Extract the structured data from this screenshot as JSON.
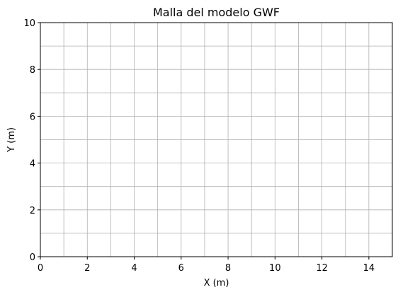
{
  "chart_data": {
    "type": "scatter",
    "title": "Malla del modelo GWF",
    "xlabel": "X (m)",
    "ylabel": "Y (m)",
    "xlim": [
      0,
      15
    ],
    "ylim": [
      0,
      10
    ],
    "xticks": [
      0,
      2,
      4,
      6,
      8,
      10,
      12,
      14
    ],
    "yticks": [
      0,
      2,
      4,
      6,
      8,
      10
    ],
    "grid": true,
    "grid_x": [
      0,
      1,
      2,
      3,
      4,
      5,
      6,
      7,
      8,
      9,
      10,
      11,
      12,
      13,
      14,
      15
    ],
    "grid_y": [
      0,
      1,
      2,
      3,
      4,
      5,
      6,
      7,
      8,
      9,
      10
    ],
    "grid_color": "#b0b0b0",
    "series": []
  }
}
